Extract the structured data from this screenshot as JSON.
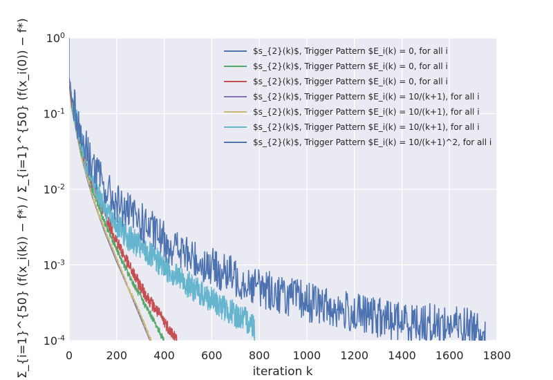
{
  "chart_data": {
    "type": "line",
    "title": "",
    "xlabel": "iteration k",
    "ylabel": "Σ_{i=1}^{50} (f(x_i(k)) − f*) / Σ_{i=1}^{50} (f(x_i(0)) − f*)",
    "xlim": [
      0,
      1800
    ],
    "ylim": [
      0.0001,
      1
    ],
    "y_scale": "log",
    "x_ticks": [
      0,
      200,
      400,
      600,
      800,
      1000,
      1200,
      1400,
      1600,
      1800
    ],
    "y_ticks": [
      {
        "value": 1,
        "base": "10",
        "exp": "0"
      },
      {
        "value": 0.1,
        "base": "10",
        "exp": "-1"
      },
      {
        "value": 0.01,
        "base": "10",
        "exp": "-2"
      },
      {
        "value": 0.001,
        "base": "10",
        "exp": "-3"
      },
      {
        "value": 0.0001,
        "base": "10",
        "exp": "-4"
      }
    ],
    "grid": true,
    "legend_position": "top-right",
    "series": [
      {
        "name": "$s_{2}(k)$, Trigger Pattern $E_i(k) = 0, for all i",
        "color": "#4c72b0",
        "x": [
          0,
          10,
          25,
          50,
          75,
          100,
          150,
          200,
          250,
          300,
          345
        ],
        "y": [
          0.25,
          0.12,
          0.07,
          0.028,
          0.014,
          0.0075,
          0.0027,
          0.0011,
          0.00048,
          0.00021,
          0.0001
        ]
      },
      {
        "name": "$s_{2}(k)$, Trigger Pattern $E_i(k) = 0, for all i",
        "color": "#55a868",
        "x": [
          0,
          10,
          25,
          50,
          75,
          100,
          150,
          200,
          250,
          300,
          350,
          400
        ],
        "y": [
          0.26,
          0.13,
          0.08,
          0.032,
          0.017,
          0.0095,
          0.0036,
          0.0016,
          0.00075,
          0.00038,
          0.0002,
          0.0001
        ]
      },
      {
        "name": "$s_{2}(k)$, Trigger Pattern $E_i(k) = 0, for all i",
        "color": "#c44e52",
        "x": [
          0,
          10,
          25,
          50,
          75,
          100,
          150,
          200,
          250,
          300,
          350,
          400,
          455
        ],
        "y": [
          0.27,
          0.14,
          0.09,
          0.037,
          0.02,
          0.012,
          0.0048,
          0.0021,
          0.001,
          0.00052,
          0.0003,
          0.00018,
          0.0001
        ]
      },
      {
        "name": "$s_{2}(k)$, Trigger Pattern $E_i(k) = 10/(k+1), for all i",
        "color": "#8172b2",
        "x": [
          0,
          10,
          25,
          50,
          75,
          100,
          150,
          200,
          250,
          300,
          340
        ],
        "y": [
          0.25,
          0.12,
          0.07,
          0.028,
          0.014,
          0.0075,
          0.0027,
          0.0011,
          0.00048,
          0.0002,
          0.0001
        ]
      },
      {
        "name": "$s_{2}(k)$, Trigger Pattern $E_i(k) = 10/(k+1), for all i",
        "color": "#ccb974",
        "x": [
          0,
          10,
          25,
          50,
          75,
          100,
          150,
          200,
          250,
          300,
          345
        ],
        "y": [
          0.25,
          0.12,
          0.072,
          0.029,
          0.015,
          0.0078,
          0.0029,
          0.0012,
          0.0005,
          0.00022,
          0.0001
        ]
      },
      {
        "name": "$s_{2}(k)$, Trigger Pattern $E_i(k) = 10/(k+1), for all i",
        "color": "#64b5cd",
        "x": [
          0,
          10,
          25,
          50,
          75,
          100,
          150,
          200,
          250,
          300,
          400,
          500,
          600,
          700,
          780
        ],
        "y": [
          0.28,
          0.16,
          0.1,
          0.045,
          0.022,
          0.013,
          0.006,
          0.0034,
          0.0023,
          0.0017,
          0.00095,
          0.00055,
          0.00034,
          0.00022,
          0.00016
        ]
      },
      {
        "name": "$s_{2}(k)$, Trigger Pattern $E_i(k) = 10/(k+1)^2, for all i",
        "color": "#4c72b0",
        "x": [
          0,
          10,
          25,
          50,
          75,
          100,
          150,
          200,
          250,
          300,
          400,
          500,
          600,
          700,
          800,
          900,
          1000,
          1100,
          1200,
          1300,
          1400,
          1500,
          1600,
          1700,
          1750
        ],
        "y": [
          0.3,
          0.2,
          0.12,
          0.05,
          0.033,
          0.021,
          0.01,
          0.0066,
          0.0048,
          0.0037,
          0.0021,
          0.0013,
          0.00092,
          0.00068,
          0.00051,
          0.0004,
          0.00033,
          0.00027,
          0.00023,
          0.0002,
          0.00018,
          0.00017,
          0.00016,
          0.00015,
          0.00015
        ]
      }
    ]
  }
}
